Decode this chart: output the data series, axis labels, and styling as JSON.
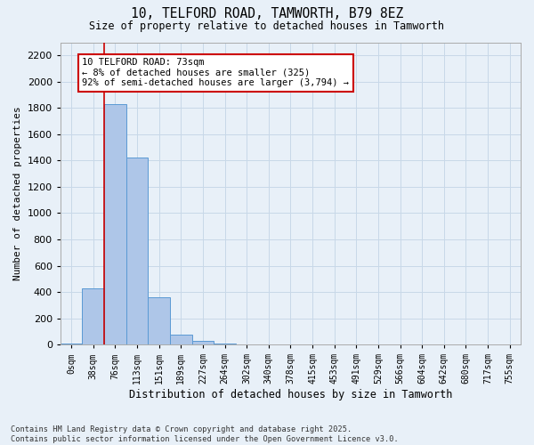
{
  "title_line1": "10, TELFORD ROAD, TAMWORTH, B79 8EZ",
  "title_line2": "Size of property relative to detached houses in Tamworth",
  "xlabel": "Distribution of detached houses by size in Tamworth",
  "ylabel": "Number of detached properties",
  "bar_labels": [
    "0sqm",
    "38sqm",
    "76sqm",
    "113sqm",
    "151sqm",
    "189sqm",
    "227sqm",
    "264sqm",
    "302sqm",
    "340sqm",
    "378sqm",
    "415sqm",
    "453sqm",
    "491sqm",
    "529sqm",
    "566sqm",
    "604sqm",
    "642sqm",
    "680sqm",
    "717sqm",
    "755sqm"
  ],
  "bar_values": [
    10,
    425,
    1830,
    1420,
    360,
    75,
    25,
    10,
    0,
    0,
    0,
    0,
    0,
    0,
    0,
    0,
    0,
    0,
    0,
    0,
    0
  ],
  "bar_color": "#aec6e8",
  "bar_edge_color": "#5a9ad4",
  "property_line_color": "#cc0000",
  "ylim": [
    0,
    2300
  ],
  "yticks": [
    0,
    200,
    400,
    600,
    800,
    1000,
    1200,
    1400,
    1600,
    1800,
    2000,
    2200
  ],
  "annotation_text": "10 TELFORD ROAD: 73sqm\n← 8% of detached houses are smaller (325)\n92% of semi-detached houses are larger (3,794) →",
  "annotation_edge_color": "#cc0000",
  "grid_color": "#c8d8e8",
  "background_color": "#e8f0f8",
  "footer_line1": "Contains HM Land Registry data © Crown copyright and database right 2025.",
  "footer_line2": "Contains public sector information licensed under the Open Government Licence v3.0."
}
